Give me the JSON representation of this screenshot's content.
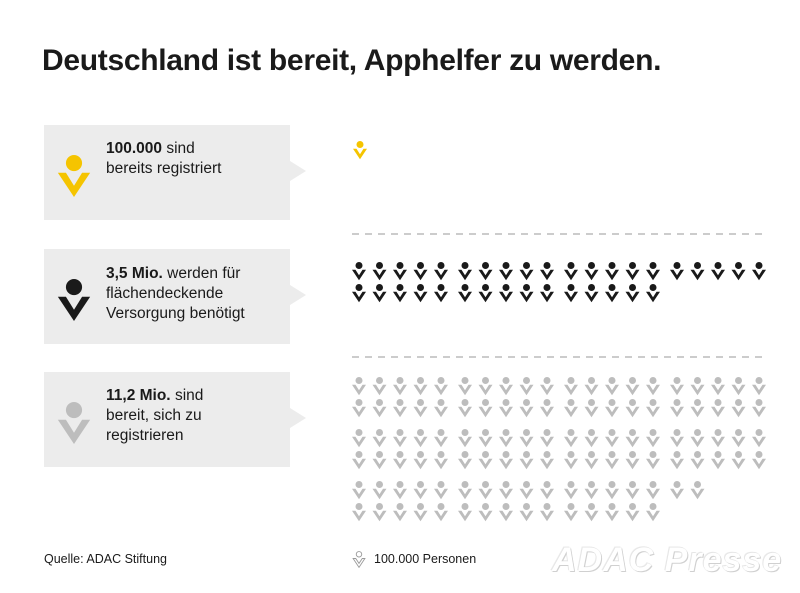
{
  "title": "Deutschland ist bereit, Apphelfer zu werden.",
  "chart_data": {
    "type": "pictogram",
    "unit": "100.000 Personen",
    "rows": [
      {
        "bold": "100.000",
        "text": " sind bereits registriert",
        "value": 100000,
        "icons": 1,
        "color": "#f5c400"
      },
      {
        "bold": "3,5 Mio.",
        "text": " werden für flächendeckende Versorgung benötigt",
        "value": 3500000,
        "icons": 35,
        "color": "#1a1a1a"
      },
      {
        "bold": "11,2 Mio.",
        "text": " sind bereit, sich zu registrieren",
        "value": 11200000,
        "icons": 112,
        "color": "#bdbdbd"
      }
    ]
  },
  "cards": [
    {
      "bold": "100.000",
      "lines": [
        "sind",
        "bereits registriert"
      ]
    },
    {
      "bold": "3,5 Mio.",
      "lines": [
        "werden für",
        "flächendeckende",
        "Versorgung benötigt"
      ]
    },
    {
      "bold": "11,2 Mio.",
      "lines": [
        "sind",
        "bereit, sich zu",
        "registrieren"
      ]
    }
  ],
  "legend": {
    "label": "100.000 Personen",
    "icon": "person-outline-icon"
  },
  "source": "Quelle: ADAC Stiftung",
  "watermark": "ADAC Presse",
  "colors": {
    "yellow": "#f5c400",
    "black": "#1a1a1a",
    "gray": "#bdbdbd",
    "card": "#ececec"
  }
}
